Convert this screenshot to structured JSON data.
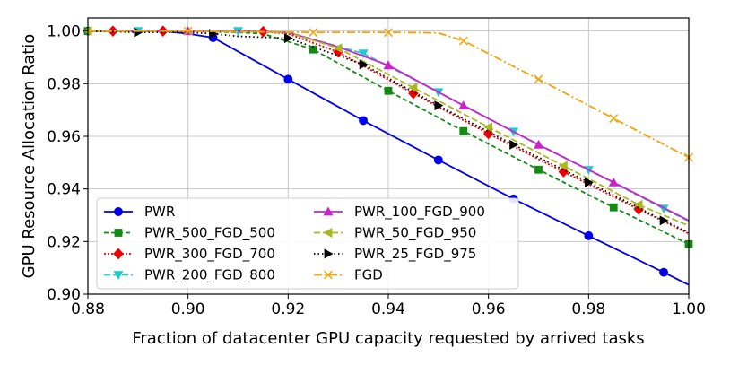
{
  "chart_data": {
    "type": "line",
    "title": "",
    "xlabel": "Fraction of datacenter GPU capacity requested by arrived tasks",
    "ylabel": "GPU Resource Allocation Ratio",
    "xlim": [
      0.88,
      1.0
    ],
    "ylim": [
      0.9,
      1.005
    ],
    "xticks": [
      0.88,
      0.9,
      0.92,
      0.94,
      0.96,
      0.98,
      1.0
    ],
    "xtick_labels": [
      "0.88",
      "0.90",
      "0.92",
      "0.94",
      "0.96",
      "0.98",
      "1.00"
    ],
    "yticks": [
      0.9,
      0.92,
      0.94,
      0.96,
      0.98,
      1.0
    ],
    "ytick_labels": [
      "0.90",
      "0.92",
      "0.94",
      "0.96",
      "0.98",
      "1.00"
    ],
    "grid": true,
    "legend_position": "lower-left",
    "series": [
      {
        "name": "PWR",
        "color": "#0000ee",
        "dash": "solid",
        "marker": "circle",
        "x": [
          0.88,
          0.89,
          0.895,
          0.9,
          0.905,
          0.92,
          0.935,
          0.95,
          0.965,
          0.98,
          0.995,
          1.0
        ],
        "y": [
          1.0,
          1.0,
          1.0,
          0.999,
          0.9975,
          0.9817,
          0.966,
          0.951,
          0.9362,
          0.9222,
          0.9083,
          0.9035
        ],
        "marker_x": [
          0.88,
          0.905,
          0.92,
          0.935,
          0.95,
          0.965,
          0.98,
          0.995
        ]
      },
      {
        "name": "PWR_500_FGD_500",
        "color": "#138a13",
        "dash": "5,3",
        "marker": "square",
        "x": [
          0.88,
          0.9,
          0.91,
          0.915,
          0.925,
          0.94,
          0.955,
          0.97,
          0.985,
          1.0
        ],
        "y": [
          1.0,
          1.0,
          0.9995,
          0.999,
          0.993,
          0.9773,
          0.962,
          0.9473,
          0.933,
          0.919
        ],
        "marker_x": [
          0.88,
          0.925,
          0.94,
          0.955,
          0.97,
          0.985,
          1.0
        ]
      },
      {
        "name": "PWR_300_FGD_700",
        "color": "#ee0000",
        "dash": "2,2",
        "marker": "diamond",
        "x": [
          0.88,
          0.885,
          0.895,
          0.9,
          0.915,
          0.92,
          0.93,
          0.945,
          0.96,
          0.975,
          0.99,
          1.0
        ],
        "y": [
          1.0,
          1.0,
          1.0,
          1.0,
          0.9998,
          0.999,
          0.992,
          0.9763,
          0.961,
          0.9465,
          0.9323,
          0.923
        ],
        "marker_x": [
          0.885,
          0.895,
          0.915,
          0.93,
          0.945,
          0.96,
          0.975,
          0.99
        ]
      },
      {
        "name": "PWR_200_FGD_800",
        "color": "#22cccc",
        "dash": "7,3",
        "marker": "triangle-down",
        "x": [
          0.88,
          0.89,
          0.91,
          0.92,
          0.935,
          0.95,
          0.965,
          0.98,
          0.995,
          1.0
        ],
        "y": [
          1.0,
          1.0,
          1.0,
          0.9995,
          0.9915,
          0.9768,
          0.9618,
          0.9472,
          0.9325,
          0.9277
        ],
        "marker_x": [
          0.89,
          0.91,
          0.935,
          0.95,
          0.965,
          0.98,
          0.995
        ]
      },
      {
        "name": "PWR_100_FGD_900",
        "color": "#cc22cc",
        "dash": "solid",
        "marker": "triangle-up",
        "x": [
          0.88,
          0.9,
          0.91,
          0.92,
          0.93,
          0.94,
          0.955,
          0.97,
          0.985,
          1.0
        ],
        "y": [
          1.0,
          1.0,
          1.0,
          0.9995,
          0.994,
          0.987,
          0.9717,
          0.9568,
          0.9425,
          0.928
        ],
        "marker_x": [
          0.9,
          0.94,
          0.955,
          0.97,
          0.985
        ]
      },
      {
        "name": "PWR_50_FGD_950",
        "color": "#a8b820",
        "dash": "7,3",
        "marker": "triangle-left",
        "x": [
          0.88,
          0.9,
          0.92,
          0.93,
          0.945,
          0.96,
          0.975,
          0.99,
          1.0
        ],
        "y": [
          1.0,
          1.0,
          0.9995,
          0.9935,
          0.9785,
          0.9635,
          0.9488,
          0.934,
          0.926
        ],
        "marker_x": [
          0.88,
          0.93,
          0.945,
          0.96,
          0.975,
          0.99
        ]
      },
      {
        "name": "PWR_25_FGD_975",
        "color": "#000000",
        "dash": "1.5,3",
        "marker": "triangle-right",
        "x": [
          0.88,
          0.89,
          0.9,
          0.905,
          0.91,
          0.92,
          0.935,
          0.95,
          0.965,
          0.98,
          0.995,
          1.0
        ],
        "y": [
          1.0,
          0.9995,
          0.9995,
          0.999,
          0.998,
          0.9973,
          0.9873,
          0.9717,
          0.9568,
          0.9425,
          0.928,
          0.9235
        ],
        "marker_x": [
          0.89,
          0.905,
          0.92,
          0.935,
          0.95,
          0.965,
          0.98,
          0.995
        ]
      },
      {
        "name": "FGD",
        "color": "#f5a30a",
        "dash": "9,3,2,3",
        "marker": "x",
        "x": [
          0.88,
          0.9,
          0.925,
          0.94,
          0.95,
          0.955,
          0.97,
          0.985,
          1.0
        ],
        "y": [
          1.0,
          1.0,
          0.9995,
          0.9995,
          0.9993,
          0.9963,
          0.9817,
          0.9668,
          0.952
        ],
        "marker_x": [
          0.9,
          0.925,
          0.94,
          0.955,
          0.97,
          0.985,
          1.0
        ]
      }
    ]
  }
}
